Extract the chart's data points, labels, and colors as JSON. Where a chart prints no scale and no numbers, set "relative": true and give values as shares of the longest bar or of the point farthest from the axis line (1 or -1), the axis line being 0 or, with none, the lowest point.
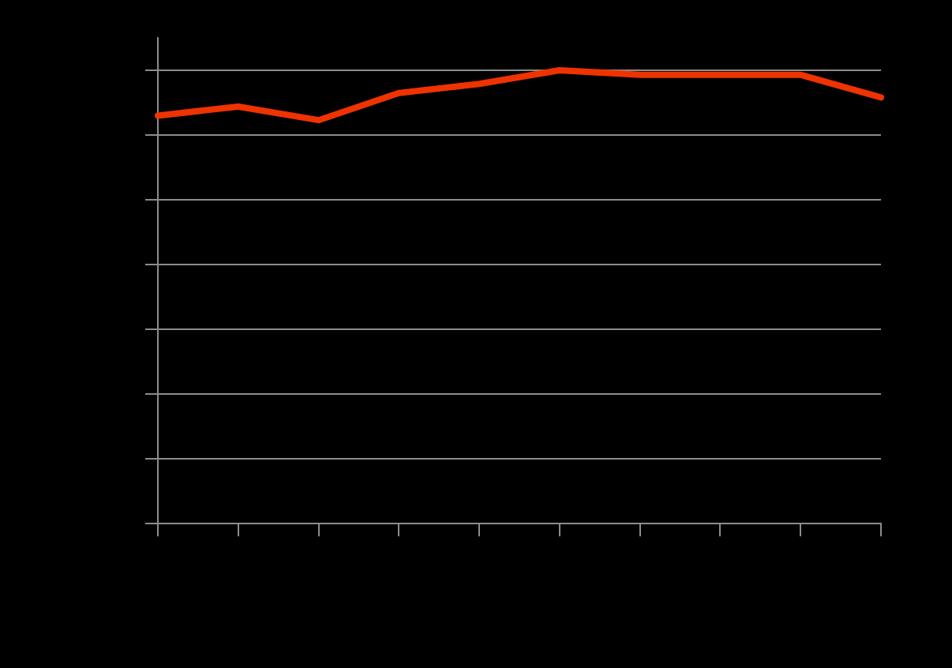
{
  "chart_data": {
    "type": "line",
    "relative": true,
    "categories": [
      null,
      null,
      null,
      null,
      null,
      null,
      null,
      null,
      null,
      null
    ],
    "series": [
      {
        "color": "#ee3300",
        "values": [
          0.9,
          0.92,
          0.89,
          0.95,
          0.97,
          1,
          0.99,
          0.99,
          0.99,
          0.94
        ]
      }
    ],
    "grid": "y",
    "marker": "none",
    "line_style": "solid"
  }
}
